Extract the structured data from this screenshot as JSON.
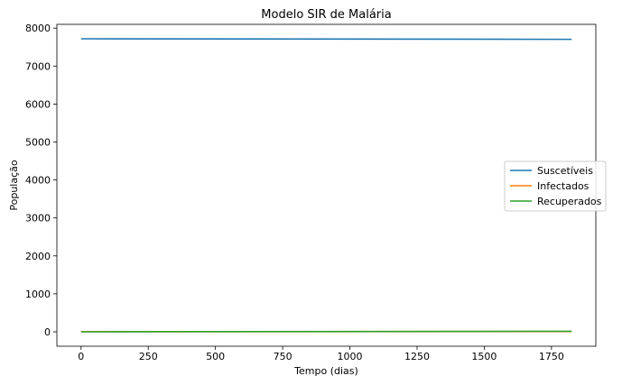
{
  "chart_data": {
    "type": "line",
    "title": "Modelo SIR de Malária",
    "xlabel": "Tempo (dias)",
    "ylabel": "População",
    "xlim": [
      -90,
      1915
    ],
    "ylim": [
      -380,
      8100
    ],
    "xticks": [
      0,
      250,
      500,
      750,
      1000,
      1250,
      1500,
      1750
    ],
    "yticks": [
      0,
      1000,
      2000,
      3000,
      4000,
      5000,
      6000,
      7000,
      8000
    ],
    "grid": false,
    "legend_position": "center-right",
    "series": [
      {
        "name": "Suscetíveis",
        "color": "#1f77b4",
        "x": [
          0,
          1825
        ],
        "y": [
          7720,
          7705
        ]
      },
      {
        "name": "Infectados",
        "color": "#ff7f0e",
        "x": [
          0,
          1825
        ],
        "y": [
          5,
          6
        ]
      },
      {
        "name": "Recuperados",
        "color": "#2ca02c",
        "x": [
          0,
          1825
        ],
        "y": [
          0,
          15
        ]
      }
    ]
  }
}
